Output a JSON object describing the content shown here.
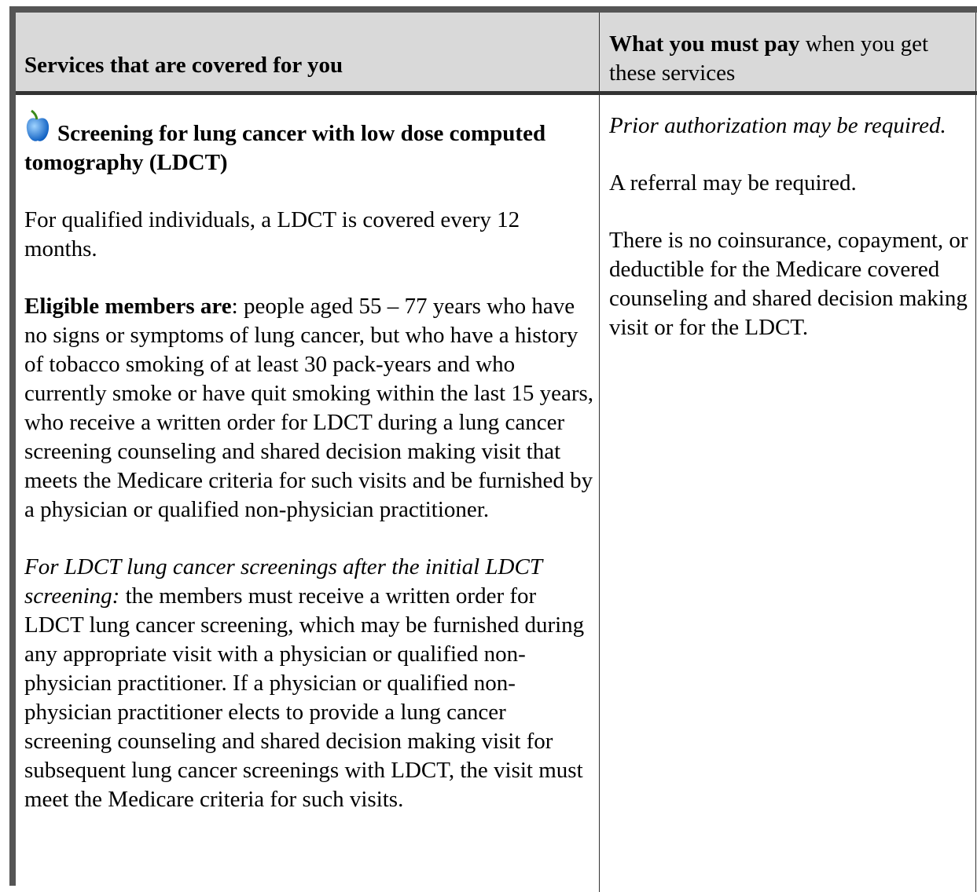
{
  "table": {
    "header": {
      "services": "Services that are covered for you",
      "pay_bold": "What you must pay",
      "pay_rest": " when you get these services"
    },
    "row": {
      "service": {
        "title": "Screening for lung cancer with low dose computed tomography (LDCT)",
        "paragraphs": [
          {
            "text": "For qualified individuals, a LDCT is covered every 12 months."
          },
          {
            "lead": "Eligible members are",
            "text": ": people aged 55 – 77 years who have no signs or symptoms of lung cancer, but who have a history of tobacco smoking of at least 30 pack-years and who currently smoke or have quit smoking within the last 15 years, who receive a written order for LDCT during a lung cancer screening counseling and shared decision making visit that meets the Medicare criteria for such visits and be furnished by a physician or qualified non-physician practitioner."
          },
          {
            "lead": "For LDCT lung cancer screenings after the initial LDCT screening:",
            "text": " the members must receive a written order for LDCT lung cancer screening, which may be furnished during any appropriate visit with a physician or qualified non-physician practitioner. If a physician or qualified non-physician practitioner elects to provide a lung cancer screening counseling and shared decision making visit for subsequent lung cancer screenings with LDCT, the visit must meet the Medicare criteria for such visits."
          }
        ]
      },
      "cost": [
        "Prior authorization may be required.",
        "A referral may be required.",
        "There is no coinsurance, copayment, or deductible for the Medicare covered counseling and shared decision making visit or for the LDCT."
      ]
    }
  }
}
